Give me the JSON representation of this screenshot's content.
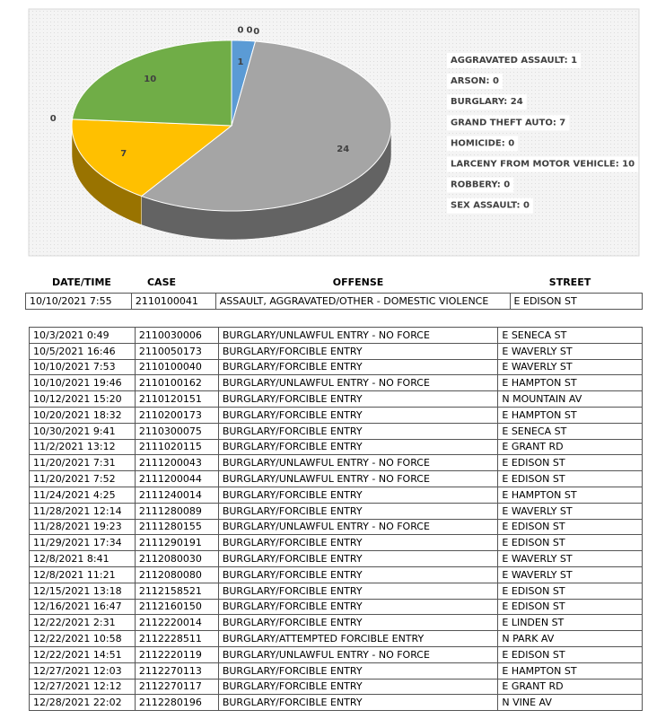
{
  "chart_data": {
    "type": "pie",
    "labels": [
      "AGGRAVATED ASSAULT: 1",
      "ARSON: 0",
      "BURGLARY: 24",
      "GRAND THEFT AUTO: 7",
      "HOMICIDE: 0",
      "LARCENY FROM MOTOR VEHICLE: 10",
      "ROBBERY: 0",
      "SEX ASSAULT: 0"
    ],
    "values": [
      1,
      0,
      24,
      7,
      0,
      10,
      0,
      0
    ],
    "colors": [
      "#5b9bd5",
      "#ed7d31",
      "#a5a5a5",
      "#ffc000",
      "#4472c4",
      "#70ad47",
      "#264478",
      "#9e480e"
    ]
  },
  "headers": [
    "DATE/TIME",
    "CASE",
    "OFFENSE",
    "STREET"
  ],
  "table1": {
    "rows": [
      [
        "10/10/2021 7:55",
        "2110100041",
        "ASSAULT, AGGRAVATED/OTHER - DOMESTIC VIOLENCE",
        "E EDISON ST"
      ]
    ]
  },
  "table2": {
    "rows": [
      [
        "10/3/2021 0:49",
        "2110030006",
        "BURGLARY/UNLAWFUL ENTRY - NO FORCE",
        "E SENECA ST"
      ],
      [
        "10/5/2021 16:46",
        "2110050173",
        "BURGLARY/FORCIBLE ENTRY",
        "E WAVERLY ST"
      ],
      [
        "10/10/2021 7:53",
        "2110100040",
        "BURGLARY/FORCIBLE ENTRY",
        "E WAVERLY ST"
      ],
      [
        "10/10/2021 19:46",
        "2110100162",
        "BURGLARY/UNLAWFUL ENTRY - NO FORCE",
        "E HAMPTON ST"
      ],
      [
        "10/12/2021 15:20",
        "2110120151",
        "BURGLARY/FORCIBLE ENTRY",
        "N MOUNTAIN AV"
      ],
      [
        "10/20/2021 18:32",
        "2110200173",
        "BURGLARY/FORCIBLE ENTRY",
        "E HAMPTON ST"
      ],
      [
        "10/30/2021 9:41",
        "2110300075",
        "BURGLARY/FORCIBLE ENTRY",
        "E SENECA ST"
      ],
      [
        "11/2/2021 13:12",
        "2111020115",
        "BURGLARY/FORCIBLE ENTRY",
        "E GRANT RD"
      ],
      [
        "11/20/2021 7:31",
        "2111200043",
        "BURGLARY/UNLAWFUL ENTRY - NO FORCE",
        "E EDISON ST"
      ],
      [
        "11/20/2021 7:52",
        "2111200044",
        "BURGLARY/UNLAWFUL ENTRY - NO FORCE",
        "E EDISON ST"
      ],
      [
        "11/24/2021 4:25",
        "2111240014",
        "BURGLARY/FORCIBLE ENTRY",
        "E HAMPTON ST"
      ],
      [
        "11/28/2021 12:14",
        "2111280089",
        "BURGLARY/FORCIBLE ENTRY",
        "E WAVERLY ST"
      ],
      [
        "11/28/2021 19:23",
        "2111280155",
        "BURGLARY/UNLAWFUL ENTRY - NO FORCE",
        "E EDISON ST"
      ],
      [
        "11/29/2021 17:34",
        "2111290191",
        "BURGLARY/FORCIBLE ENTRY",
        "E EDISON ST"
      ],
      [
        "12/8/2021 8:41",
        "2112080030",
        "BURGLARY/FORCIBLE ENTRY",
        "E WAVERLY ST"
      ],
      [
        "12/8/2021 11:21",
        "2112080080",
        "BURGLARY/FORCIBLE ENTRY",
        "E WAVERLY ST"
      ],
      [
        "12/15/2021 13:18",
        "2112158521",
        "BURGLARY/FORCIBLE ENTRY",
        "E EDISON ST"
      ],
      [
        "12/16/2021 16:47",
        "2112160150",
        "BURGLARY/FORCIBLE ENTRY",
        "E EDISON ST"
      ],
      [
        "12/22/2021 2:31",
        "2112220014",
        "BURGLARY/FORCIBLE ENTRY",
        "E LINDEN ST"
      ],
      [
        "12/22/2021 10:58",
        "2112228511",
        "BURGLARY/ATTEMPTED FORCIBLE ENTRY",
        "N PARK AV"
      ],
      [
        "12/22/2021 14:51",
        "2112220119",
        "BURGLARY/UNLAWFUL ENTRY - NO FORCE",
        "E EDISON ST"
      ],
      [
        "12/27/2021 12:03",
        "2112270113",
        "BURGLARY/FORCIBLE ENTRY",
        "E HAMPTON ST"
      ],
      [
        "12/27/2021 12:12",
        "2112270117",
        "BURGLARY/FORCIBLE ENTRY",
        "E GRANT RD"
      ],
      [
        "12/28/2021 22:02",
        "2112280196",
        "BURGLARY/FORCIBLE ENTRY",
        "N VINE AV"
      ]
    ]
  }
}
